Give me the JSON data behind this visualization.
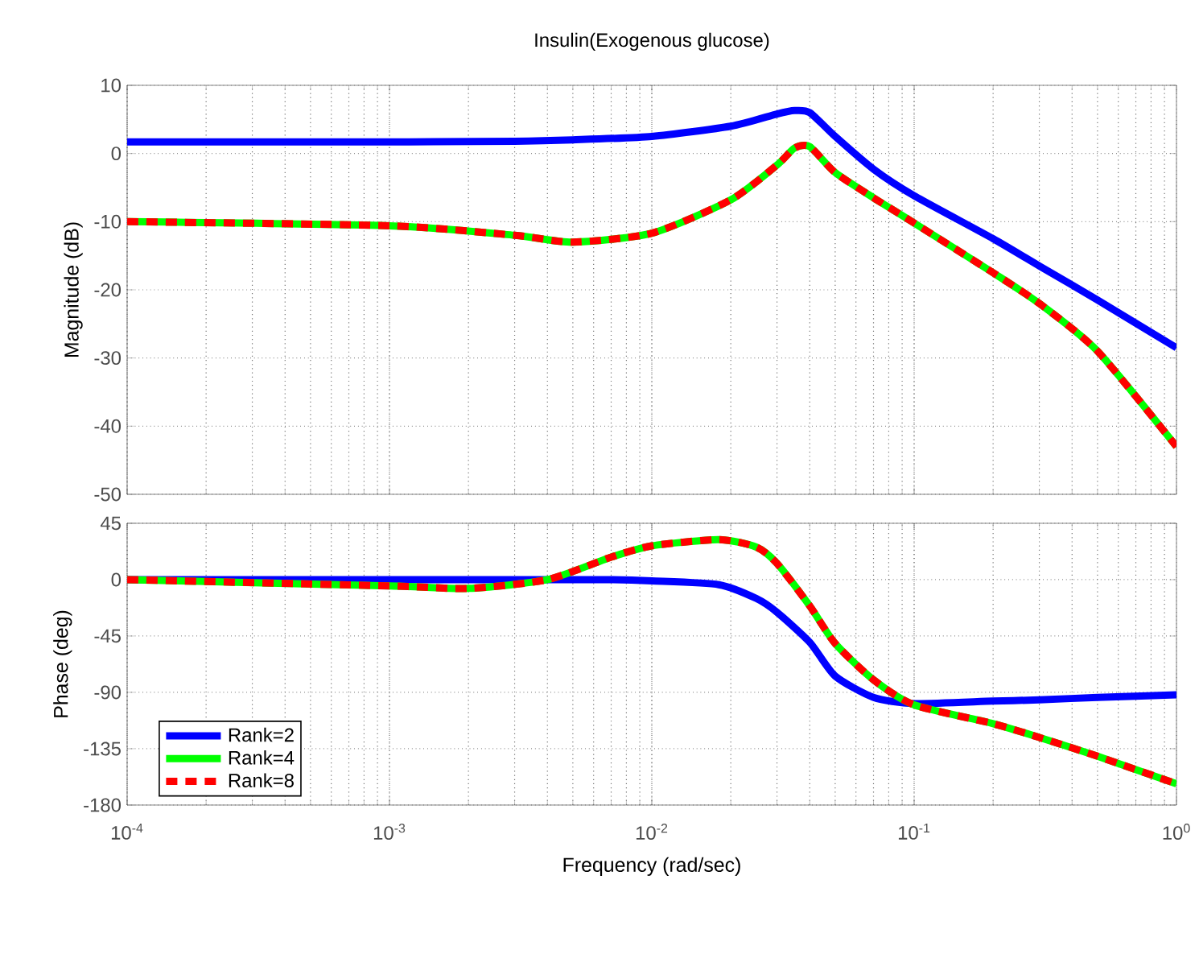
{
  "chart_data": [
    {
      "type": "line",
      "title": "Insulin(Exogenous glucose)",
      "ylabel": "Magnitude (dB)",
      "log": "x",
      "grid": true,
      "tick_labels": "y",
      "xlim": [
        0.0001,
        1
      ],
      "xticks": [
        {
          "value": 0.0001,
          "label": null
        },
        {
          "value": 0.001,
          "label": null
        },
        {
          "value": 0.01,
          "label": null
        },
        {
          "value": 0.1,
          "label": null
        },
        {
          "value": 1,
          "label": null
        }
      ],
      "ylim": [
        -50,
        10
      ],
      "yticks": [
        -50,
        -40,
        -30,
        -20,
        -10,
        0,
        10
      ],
      "x": [
        0.0001,
        0.001,
        0.003,
        0.005,
        0.01,
        0.02,
        0.03,
        0.035,
        0.04,
        0.05,
        0.07,
        0.1,
        0.2,
        0.3,
        0.5,
        1
      ],
      "series": [
        {
          "color": "#0000ff",
          "line_style": "solid",
          "values": [
            1.7,
            1.7,
            1.8,
            2.0,
            2.5,
            4.0,
            5.8,
            6.3,
            6.0,
            2.5,
            -2.3,
            -6.2,
            -12.5,
            -16.5,
            -21.5,
            -28.5
          ]
        },
        {
          "color": "#00ff00",
          "line_style": "solid",
          "values": [
            -10,
            -10.6,
            -12,
            -13,
            -11.7,
            -6.8,
            -1.7,
            0.8,
            1.0,
            -2.8,
            -6.5,
            -10.2,
            -17.5,
            -22,
            -29,
            -43
          ]
        },
        {
          "color": "#ff0000",
          "line_style": "dashed",
          "values": [
            -10,
            -10.6,
            -12,
            -13,
            -11.7,
            -6.8,
            -1.7,
            0.8,
            1.0,
            -2.8,
            -6.5,
            -10.2,
            -17.5,
            -22,
            -29,
            -43
          ]
        }
      ]
    },
    {
      "type": "line",
      "xlabel": "Frequency  (rad/sec)",
      "ylabel": "Phase (deg)",
      "log": "x",
      "grid": true,
      "legend": "bottom left",
      "xlim": [
        0.0001,
        1
      ],
      "xticks": [
        {
          "value": 0.0001,
          "label": "10$^{-4}$"
        },
        {
          "value": 0.001,
          "label": "10$^{-3}$"
        },
        {
          "value": 0.01,
          "label": "10$^{-2}$"
        },
        {
          "value": 0.1,
          "label": "10$^{-1}$"
        },
        {
          "value": 1,
          "label": "10$^{0}$"
        }
      ],
      "ylim": [
        -180,
        45
      ],
      "yticks": [
        -180,
        -135,
        -90,
        -45,
        0,
        45
      ],
      "x": [
        0.0001,
        0.001,
        0.002,
        0.004,
        0.007,
        0.01,
        0.018,
        0.025,
        0.03,
        0.04,
        0.05,
        0.07,
        0.1,
        0.2,
        0.3,
        0.5,
        1
      ],
      "series": [
        {
          "name": "Rank=2",
          "color": "#0000ff",
          "line_style": "solid",
          "values": [
            0,
            0,
            0,
            0,
            0,
            -1,
            -4,
            -15,
            -26,
            -50,
            -77,
            -94,
            -99,
            -97,
            -96,
            -94,
            -92
          ]
        },
        {
          "name": "Rank=4",
          "color": "#00ff00",
          "line_style": "solid",
          "values": [
            0,
            -5,
            -7,
            0,
            18,
            27,
            32,
            26,
            13,
            -21,
            -51,
            -80,
            -100,
            -115,
            -126,
            -141,
            -163
          ]
        },
        {
          "name": "Rank=8",
          "color": "#ff0000",
          "line_style": "dashed",
          "values": [
            0,
            -5,
            -7,
            0,
            18,
            27,
            32,
            26,
            13,
            -21,
            -51,
            -80,
            -100,
            -115,
            -126,
            -141,
            -163
          ]
        }
      ]
    }
  ]
}
